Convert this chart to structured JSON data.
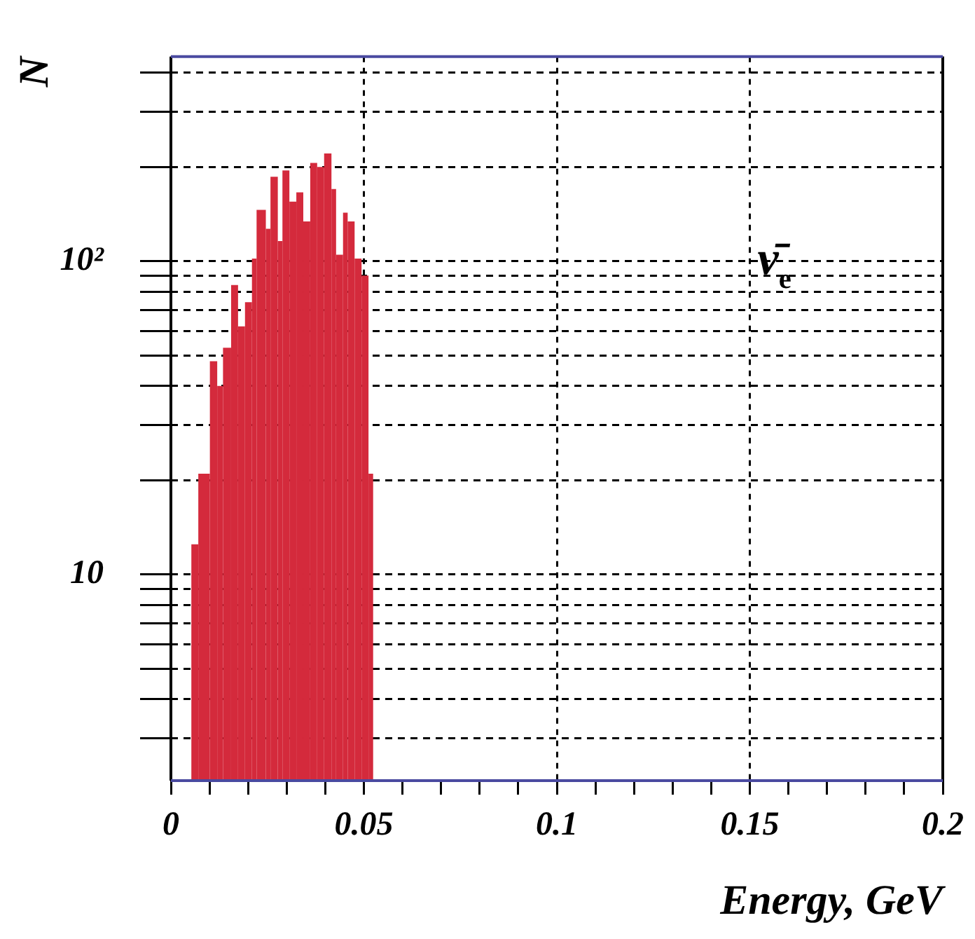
{
  "chart_data": {
    "type": "histogram",
    "xlabel": "Energy, GeV",
    "ylabel": "N",
    "bins": [
      0.0053,
      0.0071,
      0.0101,
      0.012,
      0.0135,
      0.0156,
      0.0174,
      0.0192,
      0.021,
      0.0222,
      0.0246,
      0.0258,
      0.0277,
      0.0289,
      0.0307,
      0.0325,
      0.0343,
      0.0361,
      0.0379,
      0.0397,
      0.0416,
      0.0428,
      0.0446,
      0.0458,
      0.0476,
      0.0494,
      0.0512,
      0.0524
    ],
    "values": [
      12.5,
      21,
      48,
      40,
      53,
      84,
      62,
      74,
      102,
      146,
      127,
      186,
      116,
      195,
      155,
      166,
      134,
      206,
      200,
      221,
      170,
      105,
      143,
      134,
      102,
      90,
      21
    ],
    "color": "#d42a3c",
    "log": "y",
    "xlim": [
      0,
      0.2
    ],
    "xticks": [
      0,
      {
        "value": 0.01,
        "label": null
      },
      {
        "value": 0.02,
        "label": null
      },
      {
        "value": 0.03,
        "label": null
      },
      {
        "value": 0.04,
        "label": null
      },
      0.05,
      {
        "value": 0.06,
        "label": null
      },
      {
        "value": 0.07,
        "label": null
      },
      {
        "value": 0.08,
        "label": null
      },
      {
        "value": 0.09,
        "label": null
      },
      0.1,
      {
        "value": 0.11,
        "label": null
      },
      {
        "value": 0.12,
        "label": null
      },
      {
        "value": 0.13,
        "label": null
      },
      {
        "value": 0.14,
        "label": null
      },
      0.15,
      {
        "value": 0.16,
        "label": null
      },
      {
        "value": 0.17,
        "label": null
      },
      {
        "value": 0.18,
        "label": null
      },
      {
        "value": 0.19,
        "label": null
      },
      0.2
    ],
    "ylim": [
      2.2,
      450
    ],
    "yticks": [
      {
        "value": 3,
        "label": null
      },
      {
        "value": 4,
        "label": null
      },
      {
        "value": 5,
        "label": null
      },
      {
        "value": 6,
        "label": null
      },
      {
        "value": 7,
        "label": null
      },
      {
        "value": 8,
        "label": null
      },
      {
        "value": 9,
        "label": null
      },
      10,
      {
        "value": 20,
        "label": null
      },
      {
        "value": 30,
        "label": null
      },
      {
        "value": 40,
        "label": null
      },
      {
        "value": 50,
        "label": null
      },
      {
        "value": 60,
        "label": null
      },
      {
        "value": 70,
        "label": null
      },
      {
        "value": 80,
        "label": null
      },
      {
        "value": 90,
        "label": null
      },
      {
        "value": 100,
        "label": "10²"
      },
      {
        "value": 200,
        "label": null
      },
      {
        "value": 300,
        "label": null
      },
      {
        "value": 400,
        "label": null
      }
    ],
    "grid": true,
    "annotations": [
      "ν̄$_{e}$"
    ]
  }
}
